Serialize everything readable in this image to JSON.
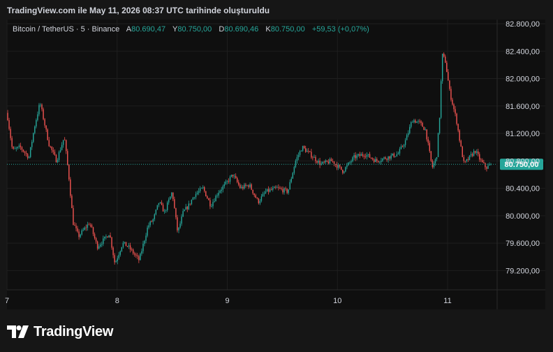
{
  "header": {
    "title": "TradingView.com ile May 11, 2026 08:37 UTC tarihinde oluşturuldu"
  },
  "legend": {
    "symbol": "Bitcoin / TetherUS · 5 · Binance",
    "open_label": "A",
    "open": "80.690,47",
    "high_label": "Y",
    "high": "80.750,00",
    "low_label": "D",
    "low": "80.690,46",
    "close_label": "K",
    "close": "80.750,00",
    "change": "+59,53 (+0,07%)"
  },
  "footer": {
    "brand": "TradingView",
    "logo_icon": "tradingview-logo-icon"
  },
  "colors": {
    "up": "#26a69a",
    "down": "#ef5350",
    "background": "#0f0f0f",
    "price_badge": "#26a69a"
  },
  "chart_data": {
    "type": "candlestick",
    "symbol": "BTCUSDT",
    "interval_minutes": 5,
    "ylim": [
      79000,
      82800
    ],
    "y_ticks": [
      79200,
      79600,
      80000,
      80400,
      80800,
      81200,
      81600,
      82000,
      82400,
      82800
    ],
    "y_tick_labels": [
      "79.200,00",
      "79.600,00",
      "80.000,00",
      "80.400,00",
      "80.800,00",
      "81.200,00",
      "81.600,00",
      "82.000,00",
      "82.400,00",
      "82.800,00"
    ],
    "x_ticks": [
      "7",
      "8",
      "9",
      "10",
      "11"
    ],
    "x_tick_days": [
      7,
      8,
      9,
      10,
      11
    ],
    "xlim_days": [
      7,
      11.45
    ],
    "current_price": 80750,
    "current_price_label": "80.750,00",
    "path_days": [
      7.0,
      7.05,
      7.12,
      7.2,
      7.25,
      7.3,
      7.38,
      7.45,
      7.52,
      7.56,
      7.6,
      7.65,
      7.7,
      7.75,
      7.82,
      7.88,
      7.93,
      7.98,
      8.05,
      8.1,
      8.15,
      8.2,
      8.28,
      8.33,
      8.38,
      8.43,
      8.5,
      8.55,
      8.6,
      8.65,
      8.7,
      8.78,
      8.85,
      8.92,
      8.98,
      9.05,
      9.12,
      9.2,
      9.28,
      9.35,
      9.45,
      9.55,
      9.62,
      9.68,
      9.75,
      9.85,
      9.95,
      10.05,
      10.15,
      10.25,
      10.35,
      10.45,
      10.55,
      10.62,
      10.68,
      10.75,
      10.8,
      10.86,
      10.9,
      10.93,
      10.95,
      10.98,
      11.02,
      11.08,
      11.12,
      11.15,
      11.2,
      11.25,
      11.3,
      11.35,
      11.4
    ],
    "path_prices": [
      81500,
      80950,
      81000,
      80850,
      81300,
      81650,
      81050,
      80800,
      81150,
      80600,
      79900,
      79700,
      79800,
      79900,
      79550,
      79650,
      79750,
      79300,
      79600,
      79550,
      79450,
      79350,
      79850,
      79950,
      80200,
      80050,
      80350,
      79750,
      80050,
      80150,
      80300,
      80400,
      80150,
      80350,
      80450,
      80600,
      80400,
      80450,
      80200,
      80350,
      80400,
      80350,
      80800,
      81000,
      80900,
      80750,
      80800,
      80650,
      80850,
      80900,
      80800,
      80850,
      80900,
      81100,
      81400,
      81350,
      81250,
      80700,
      80850,
      81500,
      82350,
      82250,
      81800,
      81400,
      81000,
      80750,
      80850,
      80950,
      80800,
      80700,
      80750
    ]
  }
}
